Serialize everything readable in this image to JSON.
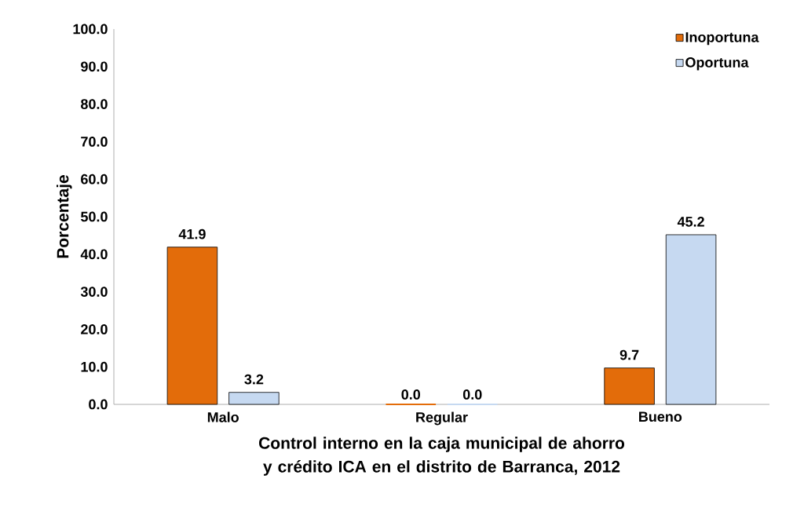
{
  "chart_data": {
    "type": "bar",
    "xlabel": "Control interno en la caja  municipal de ahorro y crédito ICA en el distrito de Barranca, 2012",
    "ylabel": "Porcentaje",
    "categories": [
      "Malo",
      "Regular",
      "Bueno"
    ],
    "series": [
      {
        "name": "Inoportuna",
        "color": "#e36c0a",
        "values": [
          41.9,
          0.0,
          9.7
        ],
        "value_labels": [
          "41.9",
          "0.0",
          "9.7"
        ]
      },
      {
        "name": "Oportuna",
        "color": "#c6d9f1",
        "values": [
          3.2,
          0.0,
          45.2
        ],
        "value_labels": [
          "3.2",
          "0.0",
          "45.2"
        ]
      }
    ],
    "ylim": [
      0,
      100
    ],
    "yticks": [
      {
        "value": 0,
        "label": "0.0"
      },
      {
        "value": 10,
        "label": "10.0"
      },
      {
        "value": 20,
        "label": "20.0"
      },
      {
        "value": 30,
        "label": "30.0"
      },
      {
        "value": 40,
        "label": "40.0"
      },
      {
        "value": 50,
        "label": "50.0"
      },
      {
        "value": 60,
        "label": "60.0"
      },
      {
        "value": 70,
        "label": "70.0"
      },
      {
        "value": 80,
        "label": "80.0"
      },
      {
        "value": 90,
        "label": "90.0"
      },
      {
        "value": 100,
        "label": "100.0"
      }
    ],
    "grid": false,
    "legend": "top right"
  }
}
